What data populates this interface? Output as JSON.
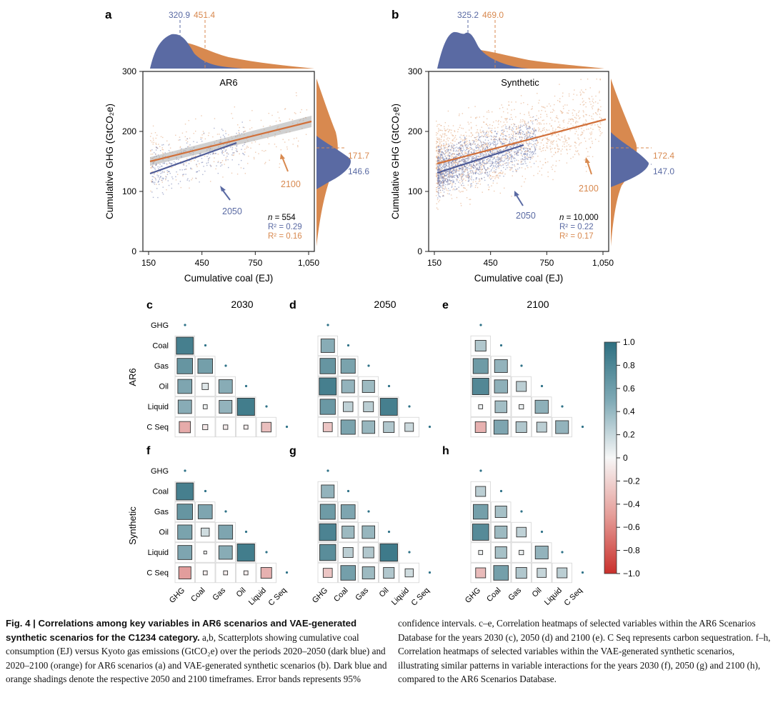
{
  "colors": {
    "blue": "#5a6aa3",
    "orange": "#d8894f",
    "teal": "#3b7d8c",
    "neg": "#c0392b"
  },
  "panels": {
    "a": {
      "letter": "a",
      "title": "AR6",
      "mean_x_2050": "320.9",
      "mean_x_2100": "451.4",
      "mean_y_2100": "171.7",
      "mean_y_2050": "146.6",
      "label_2050": "2050",
      "label_2100": "2100",
      "n_label": "n",
      "n_value": " = 554",
      "r2_blue": "R² = 0.29",
      "r2_orange": "R² = 0.16"
    },
    "b": {
      "letter": "b",
      "title": "Synthetic",
      "mean_x_2050": "325.2",
      "mean_x_2100": "469.0",
      "mean_y_2100": "172.4",
      "mean_y_2050": "147.0",
      "label_2050": "2050",
      "label_2100": "2100",
      "n_label": "n",
      "n_value": " = 10,000",
      "r2_blue": "R² = 0.22",
      "r2_orange": "R² = 0.17"
    }
  },
  "axes": {
    "xlabel": "Cumulative coal (EJ)",
    "ylabel": "Cumulative GHG (GtCO₂e)",
    "xticks": [
      "150",
      "450",
      "750",
      "1,050"
    ],
    "yticks": [
      "0",
      "100",
      "200",
      "300"
    ]
  },
  "heatmaps": {
    "variables": [
      "GHG",
      "Coal",
      "Gas",
      "Oil",
      "Liquid",
      "C Seq"
    ],
    "row_ar6": "AR6",
    "row_synthetic": "Synthetic",
    "years": [
      "2030",
      "2050",
      "2100"
    ],
    "colorbar_ticks": [
      "1.0",
      "0.8",
      "0.6",
      "0.4",
      "0.2",
      "0",
      "−0.2",
      "−0.4",
      "−0.6",
      "−0.8",
      "−1.0"
    ],
    "panels": [
      {
        "letter": "c",
        "year": "2030",
        "values": [
          [
            0.88
          ],
          [
            0.72,
            0.65
          ],
          [
            0.6,
            0.12,
            0.55
          ],
          [
            0.55,
            0.05,
            0.5,
            0.9
          ],
          [
            -0.38,
            -0.08,
            -0.06,
            -0.05,
            -0.28
          ]
        ]
      },
      {
        "letter": "d",
        "year": "2050",
        "values": [
          [
            0.55
          ],
          [
            0.72,
            0.62
          ],
          [
            0.88,
            0.5,
            0.45
          ],
          [
            0.7,
            0.28,
            0.3,
            0.88
          ],
          [
            -0.25,
            0.62,
            0.48,
            0.35,
            0.22
          ]
        ]
      },
      {
        "letter": "e",
        "year": "2100",
        "values": [
          [
            0.35
          ],
          [
            0.68,
            0.5
          ],
          [
            0.82,
            0.52,
            0.3
          ],
          [
            0.05,
            0.42,
            0.06,
            0.52
          ],
          [
            -0.35,
            0.6,
            0.35,
            0.3,
            0.5
          ]
        ]
      },
      {
        "letter": "f",
        "year": "",
        "values": [
          [
            0.88
          ],
          [
            0.72,
            0.6
          ],
          [
            0.62,
            0.2,
            0.6
          ],
          [
            0.6,
            0.02,
            0.55,
            0.9
          ],
          [
            -0.45,
            -0.05,
            -0.05,
            -0.05,
            -0.35
          ]
        ]
      },
      {
        "letter": "g",
        "year": "",
        "values": [
          [
            0.5
          ],
          [
            0.68,
            0.6
          ],
          [
            0.85,
            0.45,
            0.48
          ],
          [
            0.78,
            0.3,
            0.35,
            0.92
          ],
          [
            -0.25,
            0.65,
            0.45,
            0.35,
            0.2
          ]
        ]
      },
      {
        "letter": "h",
        "year": "",
        "values": [
          [
            0.3
          ],
          [
            0.65,
            0.4
          ],
          [
            0.8,
            0.45,
            0.28
          ],
          [
            0.05,
            0.4,
            0.06,
            0.5
          ],
          [
            -0.3,
            0.65,
            0.35,
            0.25,
            0.3
          ]
        ]
      }
    ]
  },
  "chart_data": [
    {
      "type": "scatter",
      "title": "AR6",
      "xlabel": "Cumulative coal (EJ)",
      "ylabel": "Cumulative GHG (GtCO₂e)",
      "xlim": [
        150,
        1050
      ],
      "ylim": [
        0,
        300
      ],
      "series": [
        {
          "name": "2050",
          "fit_x": [
            150,
            650
          ],
          "fit_y": [
            130,
            180
          ],
          "mean_x": 320.9,
          "mean_y": 146.6
        },
        {
          "name": "2100",
          "fit_x": [
            150,
            1050
          ],
          "fit_y": [
            152,
            215
          ],
          "mean_x": 451.4,
          "mean_y": 171.7
        }
      ]
    },
    {
      "type": "scatter",
      "title": "Synthetic",
      "xlabel": "Cumulative coal (EJ)",
      "ylabel": "Cumulative GHG (GtCO₂e)",
      "xlim": [
        150,
        1050
      ],
      "ylim": [
        0,
        300
      ],
      "series": [
        {
          "name": "2050",
          "fit_x": [
            150,
            650
          ],
          "fit_y": [
            130,
            177
          ],
          "mean_x": 325.2,
          "mean_y": 147.0
        },
        {
          "name": "2100",
          "fit_x": [
            150,
            1050
          ],
          "fit_y": [
            148,
            222
          ],
          "mean_x": 469.0,
          "mean_y": 172.4
        }
      ]
    }
  ],
  "caption": {
    "fig_label": "Fig. 4 | Correlations among key variables in AR6 scenarios and VAE-generated synthetic scenarios for the C1234 category.",
    "left_rest": " a,b, Scatterplots showing cumulative coal consumption (EJ) versus Kyoto gas emissions (GtCO₂e) over the periods 2020–2050 (dark blue) and 2020–2100 (orange) for AR6 scenarios (a) and VAE-generated synthetic scenarios (b). Dark blue and orange shadings denote the respective 2050 and 2100 timeframes. Error bands represents 95%",
    "right": "confidence intervals. c–e, Correlation heatmaps of selected variables within the AR6 Scenarios Database for the years 2030 (c), 2050 (d) and 2100 (e). C Seq represents carbon sequestration. f–h, Correlation heatmaps of selected variables within the VAE-generated synthetic scenarios, illustrating similar patterns in variable interactions for the years 2030 (f), 2050 (g) and 2100 (h), compared to the AR6 Scenarios Database."
  }
}
